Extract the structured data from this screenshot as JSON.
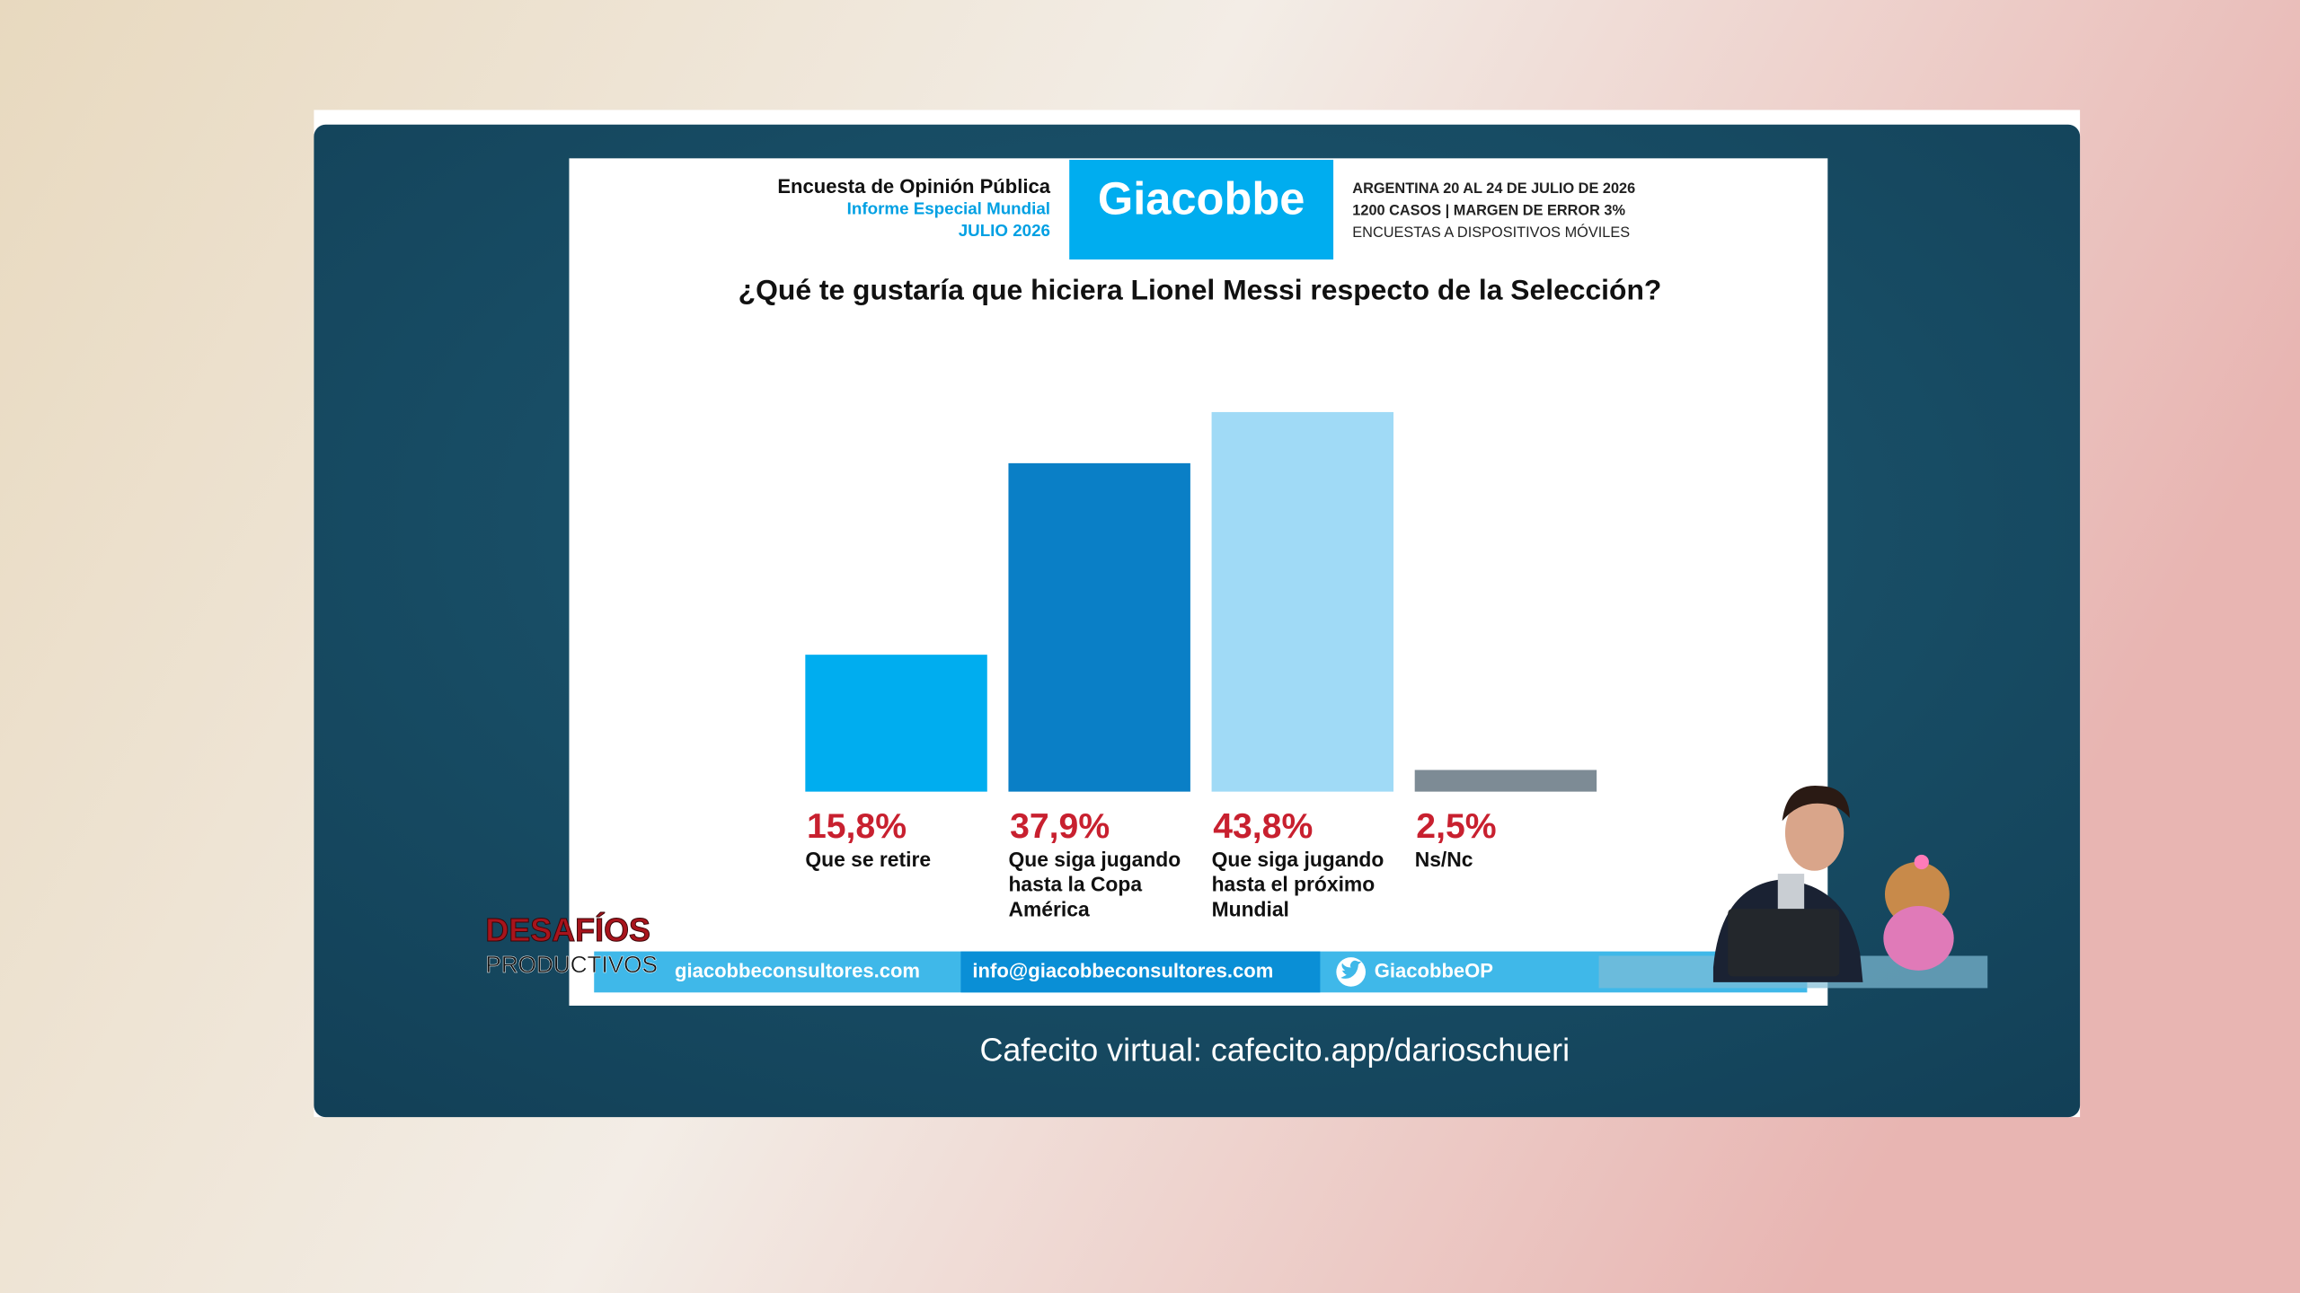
{
  "chart_data": {
    "type": "bar",
    "title": "¿Qué te gustaría que hiciera Lionel Messi respecto de la Selección?",
    "categories": [
      "Que se retire",
      "Que siga jugando hasta la Copa América",
      "Que siga jugando hasta el próximo Mundial",
      "Ns/Nc"
    ],
    "values": [
      15.8,
      37.9,
      43.8,
      2.5
    ],
    "value_labels": [
      "15,8%",
      "37,9%",
      "43,8%",
      "2,5%"
    ],
    "colors": [
      "#00adef",
      "#0a7fc6",
      "#a0daf6",
      "#7d8b95"
    ],
    "ylim": [
      0,
      45
    ]
  },
  "header": {
    "survey": "Encuesta de Opinión Pública",
    "report": "Informe Especial Mundial",
    "date": "JULIO 2026",
    "brand": "Giacobbe",
    "line1": "ARGENTINA 20 AL 24 DE JULIO DE 2026",
    "line2": "1200 CASOS | MARGEN DE ERROR 3%",
    "line3": "ENCUESTAS A DISPOSITIVOS MÓVILES"
  },
  "footer": {
    "web": "giacobbeconsultores.com",
    "email": "info@giacobbeconsultores.com",
    "twitter": "GiacobbeOP"
  },
  "overlay": {
    "show_line1": "DESAFÍOS",
    "show_line2": "PRODUCTIVOS",
    "caption": "Cafecito virtual: cafecito.app/darioschueri"
  }
}
